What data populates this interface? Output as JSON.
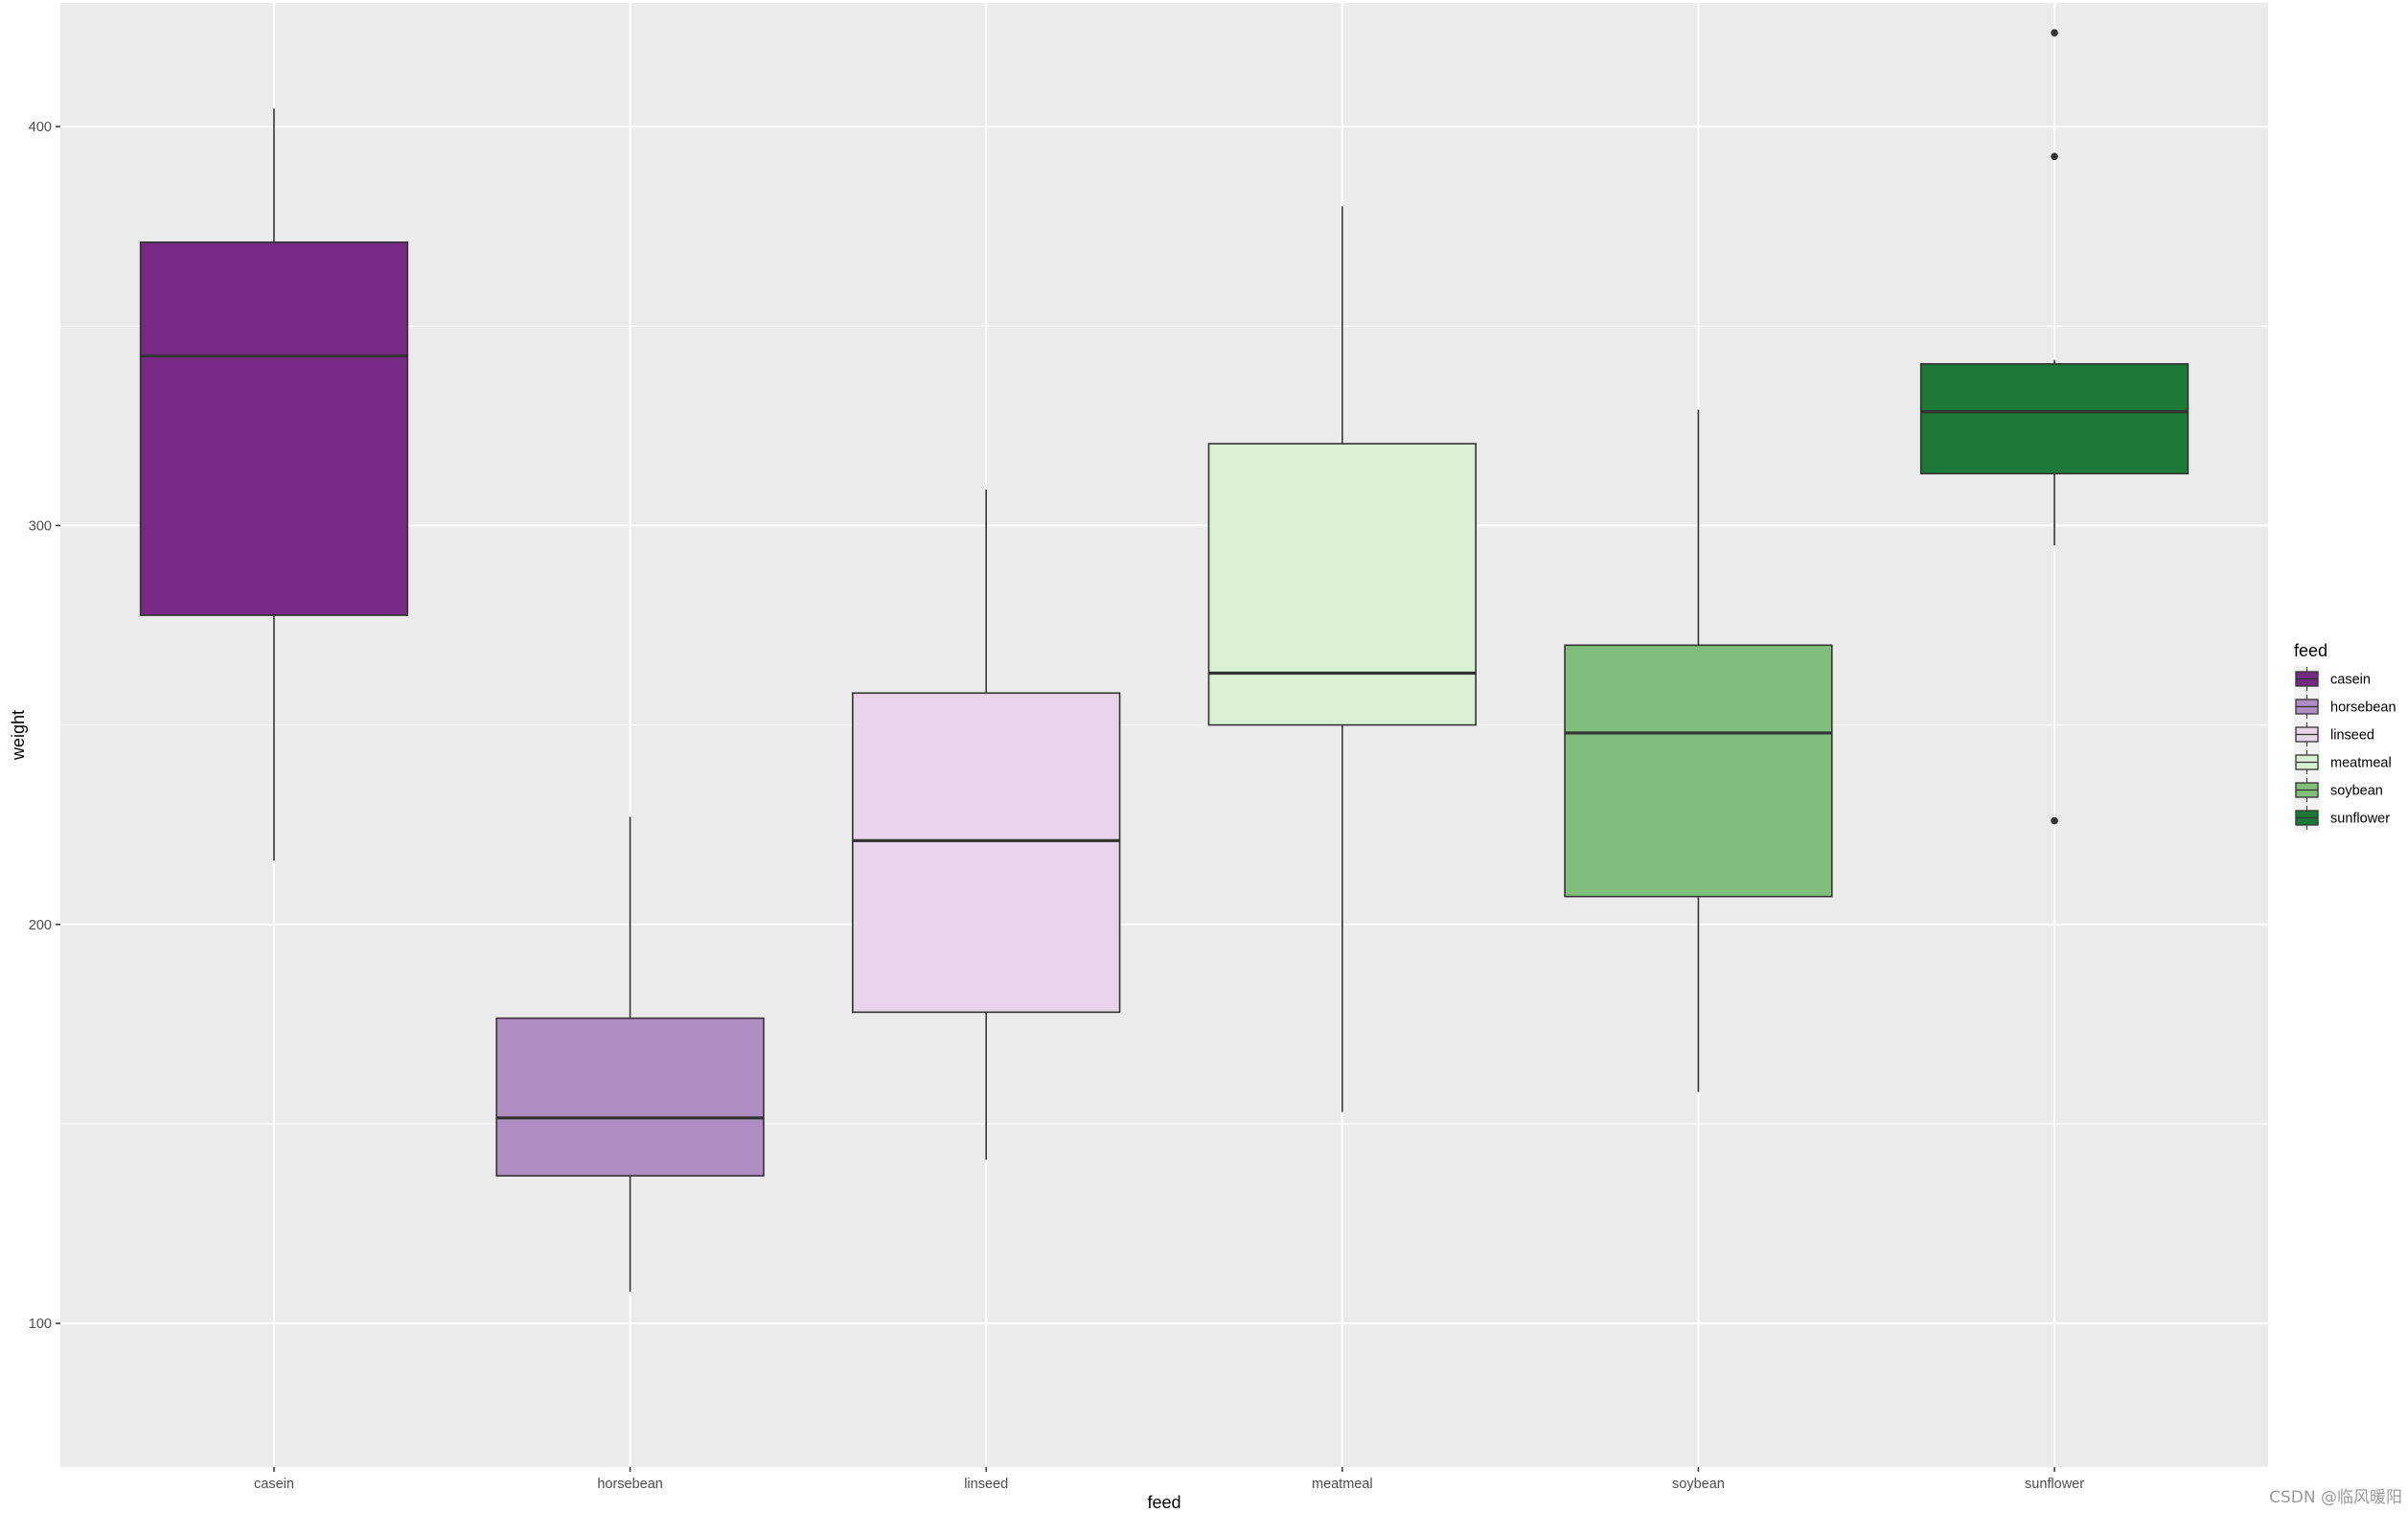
{
  "chart_data": {
    "type": "boxplot",
    "title": "",
    "xlabel": "feed",
    "ylabel": "weight",
    "ylim": [
      64,
      431
    ],
    "y_ticks": [
      100,
      200,
      300,
      400
    ],
    "grid": true,
    "legend_position": "right",
    "legend_title": "feed",
    "categories": [
      "casein",
      "horsebean",
      "linseed",
      "meatmeal",
      "soybean",
      "sunflower"
    ],
    "series": [
      {
        "name": "casein",
        "color": "#762A83",
        "whisker_low": 216,
        "q1": 277.5,
        "median": 342.5,
        "q3": 371,
        "whisker_high": 404.5,
        "outliers": []
      },
      {
        "name": "horsebean",
        "color": "#AF8DC3",
        "whisker_low": 108,
        "q1": 137,
        "median": 151.5,
        "q3": 176.5,
        "whisker_high": 227,
        "outliers": []
      },
      {
        "name": "linseed",
        "color": "#E7D4E8",
        "whisker_low": 141,
        "q1": 178,
        "median": 221,
        "q3": 258,
        "whisker_high": 309,
        "outliers": []
      },
      {
        "name": "meatmeal",
        "color": "#D9F0D3",
        "whisker_low": 153,
        "q1": 250,
        "median": 263,
        "q3": 320.5,
        "whisker_high": 380,
        "outliers": []
      },
      {
        "name": "soybean",
        "color": "#7FBF7B",
        "whisker_low": 158,
        "q1": 207,
        "median": 248,
        "q3": 270,
        "whisker_high": 329,
        "outliers": []
      },
      {
        "name": "sunflower",
        "color": "#1B7837",
        "whisker_low": 295,
        "q1": 313,
        "median": 328.5,
        "q3": 340.5,
        "whisker_high": 341.5,
        "outliers": [
          423.5,
          392.5,
          226
        ]
      }
    ]
  },
  "theme": {
    "panel_bg": "#EBEBEB",
    "grid_major": "#FFFFFF",
    "box_outline": "#333333",
    "legend_key_bg": "#F2F2F2"
  },
  "watermark": "CSDN @临风暖阳"
}
